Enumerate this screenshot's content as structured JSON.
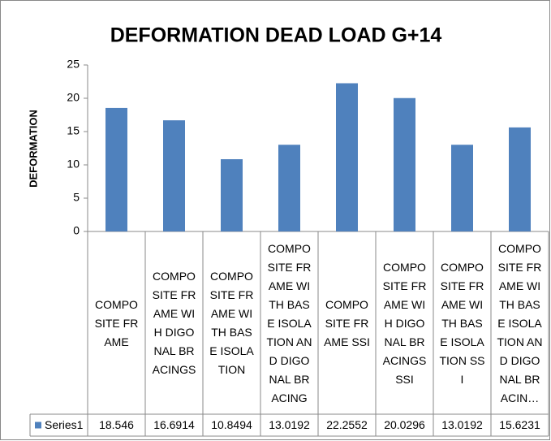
{
  "chart_data": {
    "type": "bar",
    "title": "DEFORMATION  DEAD LOAD G+14",
    "y_label": "DEFORMATION",
    "categories": [
      "COMPOSITE FRAME",
      "COMPOSITE FRAME WIH DIGONAL BRACINGS",
      "COMPOSITE FRAME WITH BASE ISOLATION",
      "COMPOSITE FRAME WITH BASE ISOLATION AND DIGONAL BRACING",
      "COMPOSITE FRAME SSI",
      "COMPOSITE FRAME WIH DIGONAL BRACINGS SSI",
      "COMPOSITE FRAME WITH BASE ISOLATION SSI",
      "COMPOSITE FRAME WITH BASE ISOLATION AND DIGONAL BRACIN…"
    ],
    "series": [
      {
        "name": "Series1",
        "color": "#4f81bd",
        "values": [
          18.546,
          16.6914,
          10.8494,
          13.0192,
          22.2552,
          20.0296,
          13.0192,
          15.6231
        ]
      }
    ],
    "ylim": [
      0,
      25
    ],
    "yticks": [
      0,
      5,
      10,
      15,
      20,
      25
    ],
    "grid": false
  }
}
